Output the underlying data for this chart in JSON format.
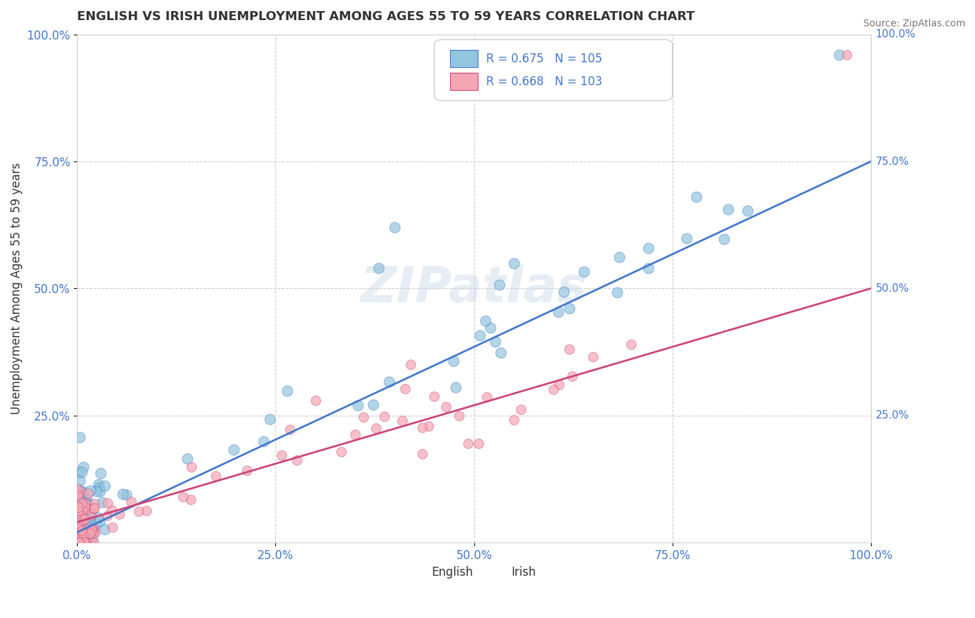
{
  "title": "ENGLISH VS IRISH UNEMPLOYMENT AMONG AGES 55 TO 59 YEARS CORRELATION CHART",
  "source": "Source: ZipAtlas.com",
  "ylabel": "Unemployment Among Ages 55 to 59 years",
  "xlabel": "",
  "english_R": 0.675,
  "english_N": 105,
  "irish_R": 0.668,
  "irish_N": 103,
  "english_color": "#92c5de",
  "irish_color": "#f4a6b2",
  "english_line_color": "#4477cc",
  "irish_line_color": "#cc4477",
  "watermark": "ZIPatlas",
  "xlim": [
    0,
    1
  ],
  "ylim": [
    0,
    1
  ],
  "x_ticks": [
    0.0,
    0.25,
    0.5,
    0.75,
    1.0
  ],
  "x_tick_labels": [
    "0.0%",
    "25.0%",
    "50.0%",
    "75.0%",
    "100.0%"
  ],
  "y_tick_labels": [
    "25.0%",
    "50.0%",
    "75.0%",
    "100.0%"
  ],
  "y_ticks": [
    0.25,
    0.5,
    0.75,
    1.0
  ],
  "grid_color": "#cccccc",
  "background_color": "#ffffff",
  "legend_color_english": "#4477cc",
  "legend_color_irish": "#cc4477"
}
